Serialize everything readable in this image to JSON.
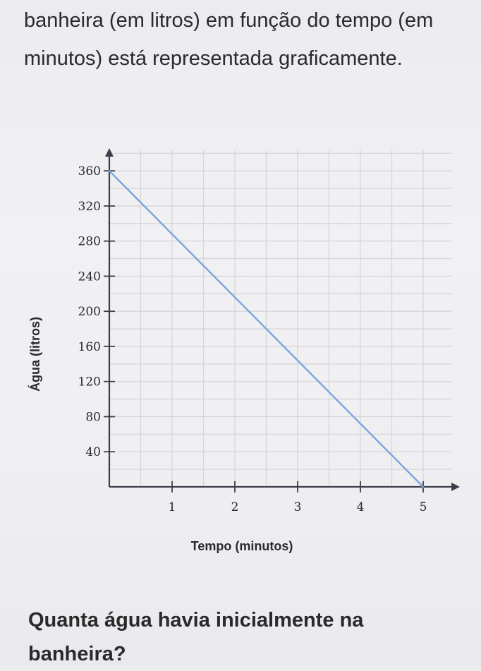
{
  "intro_text": "banheira (em litros) em função do tempo (em minutos) está representada graficamente.",
  "question_text": "Quanta água havia inicialmente na banheira?",
  "chart_data": {
    "type": "line",
    "title": "",
    "xlabel": "Tempo (minutos)",
    "ylabel": "Água (litros)",
    "xlim": [
      0,
      5.5
    ],
    "ylim": [
      0,
      380
    ],
    "x_ticks": [
      1,
      2,
      3,
      4,
      5
    ],
    "y_ticks": [
      40,
      80,
      120,
      160,
      200,
      240,
      280,
      320,
      360
    ],
    "grid": true,
    "series": [
      {
        "x": [
          0,
          5
        ],
        "y": [
          360,
          0
        ],
        "color": "#7ba3e0"
      }
    ],
    "colors": {
      "grid": "#d6d6d9",
      "axis": "#3a3f4a",
      "line": "#7ba3e0"
    }
  }
}
